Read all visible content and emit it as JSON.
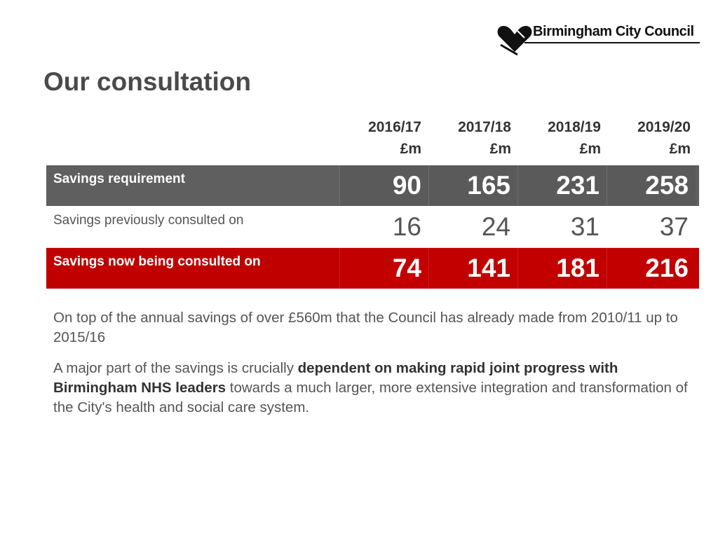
{
  "logo": {
    "name": "Birmingham City Council"
  },
  "slide": {
    "title": "Our consultation"
  },
  "table": {
    "columns": [
      {
        "year": "2016/17",
        "unit": "£m"
      },
      {
        "year": "2017/18",
        "unit": "£m"
      },
      {
        "year": "2018/19",
        "unit": "£m"
      },
      {
        "year": "2019/20",
        "unit": "£m"
      }
    ],
    "rows": [
      {
        "label": "Savings requirement",
        "values": [
          "90",
          "165",
          "231",
          "258"
        ],
        "color": "#5f5f5f"
      },
      {
        "label": "Savings previously consulted on",
        "values": [
          "16",
          "24",
          "31",
          "37"
        ],
        "color": "#ffffff"
      },
      {
        "label": "Savings now being consulted on",
        "values": [
          "74",
          "141",
          "181",
          "216"
        ],
        "color": "#c00000"
      }
    ]
  },
  "body": {
    "paragraph1": "On top of the annual savings of over £560m that the Council has already made from 2010/11 up to 2015/16",
    "paragraph2_part1": "A major part of the savings is crucially ",
    "paragraph2_bold": "dependent on making rapid joint progress with Birmingham NHS leaders",
    "paragraph2_part2": " towards a much larger, more extensive integration and transformation of the City's health and social care system."
  },
  "colors": {
    "title": "#4a4a4a",
    "accent_red": "#c00000",
    "header_grey": "#5f5f5f"
  },
  "icons": {
    "logo_mark": "heart-emblem-icon"
  }
}
